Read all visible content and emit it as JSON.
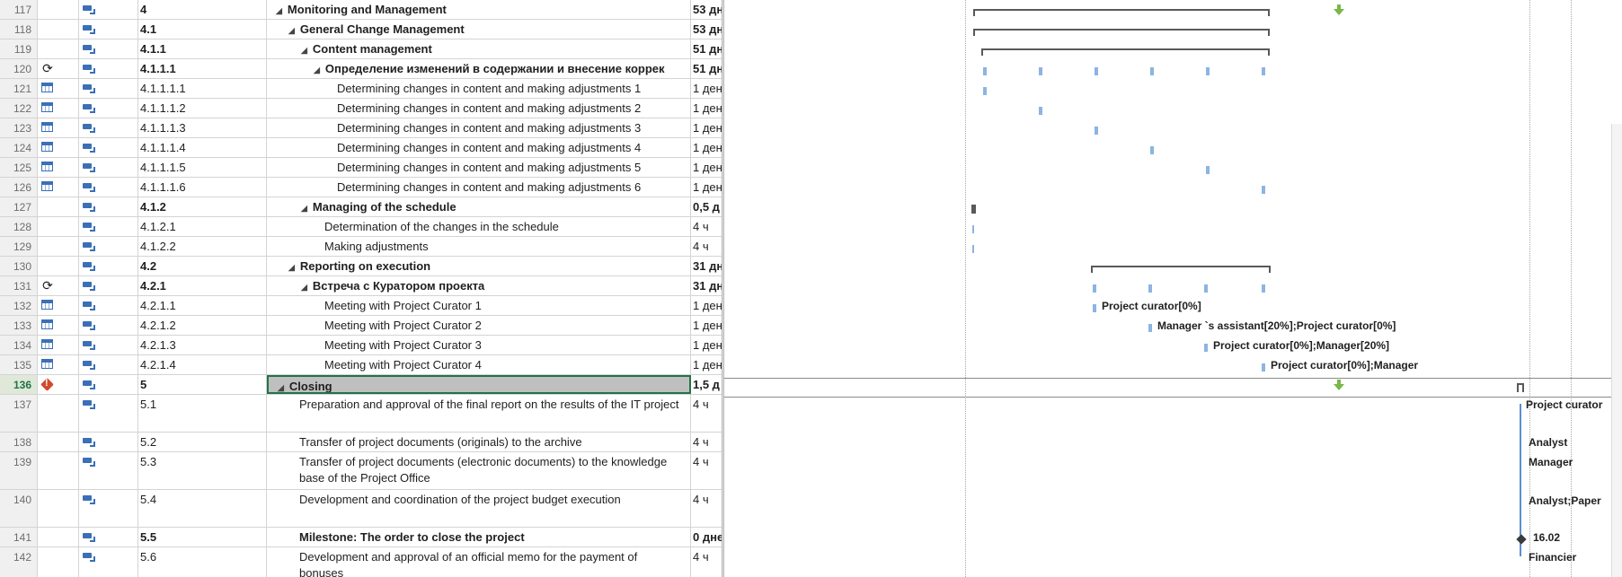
{
  "rows": [
    {
      "num": "117",
      "ind": "",
      "wbs": "4",
      "name": "Monitoring and Management",
      "dur": "53 дн",
      "bold": true,
      "level": 0,
      "collapse": true
    },
    {
      "num": "118",
      "ind": "",
      "wbs": "4.1",
      "name": "General Change Management",
      "dur": "53 дн",
      "bold": true,
      "level": 1,
      "collapse": true
    },
    {
      "num": "119",
      "ind": "",
      "wbs": "4.1.1",
      "name": "Content management",
      "dur": "51 дн",
      "bold": true,
      "level": 2,
      "collapse": true
    },
    {
      "num": "120",
      "ind": "recurring",
      "wbs": "4.1.1.1",
      "name": "Определение изменений в содержании и внесение коррек",
      "dur": "51 дн",
      "bold": true,
      "level": 3,
      "collapse": true
    },
    {
      "num": "121",
      "ind": "calendar",
      "wbs": "4.1.1.1.1",
      "name": "Determining changes in content and making adjustments 1",
      "dur": "1 ден",
      "bold": false,
      "level": 4
    },
    {
      "num": "122",
      "ind": "calendar",
      "wbs": "4.1.1.1.2",
      "name": "Determining changes in content and making adjustments 2",
      "dur": "1 ден",
      "bold": false,
      "level": 4
    },
    {
      "num": "123",
      "ind": "calendar",
      "wbs": "4.1.1.1.3",
      "name": "Determining changes in content and making adjustments 3",
      "dur": "1 ден",
      "bold": false,
      "level": 4
    },
    {
      "num": "124",
      "ind": "calendar",
      "wbs": "4.1.1.1.4",
      "name": "Determining changes in content and making adjustments 4",
      "dur": "1 ден",
      "bold": false,
      "level": 4
    },
    {
      "num": "125",
      "ind": "calendar",
      "wbs": "4.1.1.1.5",
      "name": "Determining changes in content and making adjustments 5",
      "dur": "1 ден",
      "bold": false,
      "level": 4
    },
    {
      "num": "126",
      "ind": "calendar",
      "wbs": "4.1.1.1.6",
      "name": "Determining changes in content and making adjustments 6",
      "dur": "1 ден",
      "bold": false,
      "level": 4
    },
    {
      "num": "127",
      "ind": "",
      "wbs": "4.1.2",
      "name": "Managing of the schedule",
      "dur": "0,5 д",
      "bold": true,
      "level": 2,
      "collapse": true
    },
    {
      "num": "128",
      "ind": "",
      "wbs": "4.1.2.1",
      "name": "Determination of the changes in the schedule",
      "dur": "4 ч",
      "bold": false,
      "level": 3
    },
    {
      "num": "129",
      "ind": "",
      "wbs": "4.1.2.2",
      "name": "Making adjustments",
      "dur": "4 ч",
      "bold": false,
      "level": 3
    },
    {
      "num": "130",
      "ind": "",
      "wbs": "4.2",
      "name": "Reporting on execution",
      "dur": "31 дн",
      "bold": true,
      "level": 1,
      "collapse": true
    },
    {
      "num": "131",
      "ind": "recurring",
      "wbs": "4.2.1",
      "name": "Встреча с Куратором проекта",
      "dur": "31 дн",
      "bold": true,
      "level": 2,
      "collapse": true
    },
    {
      "num": "132",
      "ind": "calendar",
      "wbs": "4.2.1.1",
      "name": "Meeting with Project Curator 1",
      "dur": "1 ден",
      "bold": false,
      "level": 3
    },
    {
      "num": "133",
      "ind": "calendar",
      "wbs": "4.2.1.2",
      "name": "Meeting with Project Curator 2",
      "dur": "1 ден",
      "bold": false,
      "level": 3
    },
    {
      "num": "134",
      "ind": "calendar",
      "wbs": "4.2.1.3",
      "name": "Meeting with Project Curator 3",
      "dur": "1 ден",
      "bold": false,
      "level": 3
    },
    {
      "num": "135",
      "ind": "calendar",
      "wbs": "4.2.1.4",
      "name": "Meeting with Project Curator 4",
      "dur": "1 ден",
      "bold": false,
      "level": 3
    },
    {
      "num": "136",
      "ind": "warning",
      "wbs": "5",
      "name": "Closing",
      "dur": "1,5 д",
      "bold": true,
      "level": 0,
      "collapse": true,
      "selected": true
    },
    {
      "num": "137",
      "ind": "",
      "wbs": "5.1",
      "name": "Preparation and approval of the final report on the results of the IT project",
      "dur": "4 ч",
      "bold": false,
      "level": 1,
      "tall": true
    },
    {
      "num": "138",
      "ind": "",
      "wbs": "5.2",
      "name": "Transfer of project documents (originals) to the archive",
      "dur": "4 ч",
      "bold": false,
      "level": 1
    },
    {
      "num": "139",
      "ind": "",
      "wbs": "5.3",
      "name": "Transfer of project documents (electronic documents) to the knowledge base of the Project Office",
      "dur": "4 ч",
      "bold": false,
      "level": 1,
      "tall": true
    },
    {
      "num": "140",
      "ind": "",
      "wbs": "5.4",
      "name": "Development and coordination of the project budget execution",
      "dur": "4 ч",
      "bold": false,
      "level": 1,
      "tall": true
    },
    {
      "num": "141",
      "ind": "",
      "wbs": "5.5",
      "name": "Milestone: The order to close the project",
      "dur": "0 дне",
      "bold": true,
      "level": 1
    },
    {
      "num": "142",
      "ind": "",
      "wbs": "5.6",
      "name": "Development and approval of an official memo for the payment of bonuses",
      "dur": "4 ч",
      "bold": false,
      "level": 1,
      "tall": true
    }
  ],
  "gantt_labels": {
    "r132": "Project curator[0%]",
    "r133": "Manager `s assistant[20%];Project curator[0%]",
    "r134": "Project curator[0%];Manager[20%]",
    "r135": "Project curator[0%];Manager",
    "r137": "Project curator",
    "r138a": "Analyst",
    "r138b": "Manager",
    "r140": "Analyst;Paper",
    "r141": "16.02",
    "r142": "Financier"
  },
  "colors": {
    "task_bar": "#8db4e2",
    "summary": "#595959",
    "selection": "#217346",
    "today_marker": "#7ab648"
  }
}
